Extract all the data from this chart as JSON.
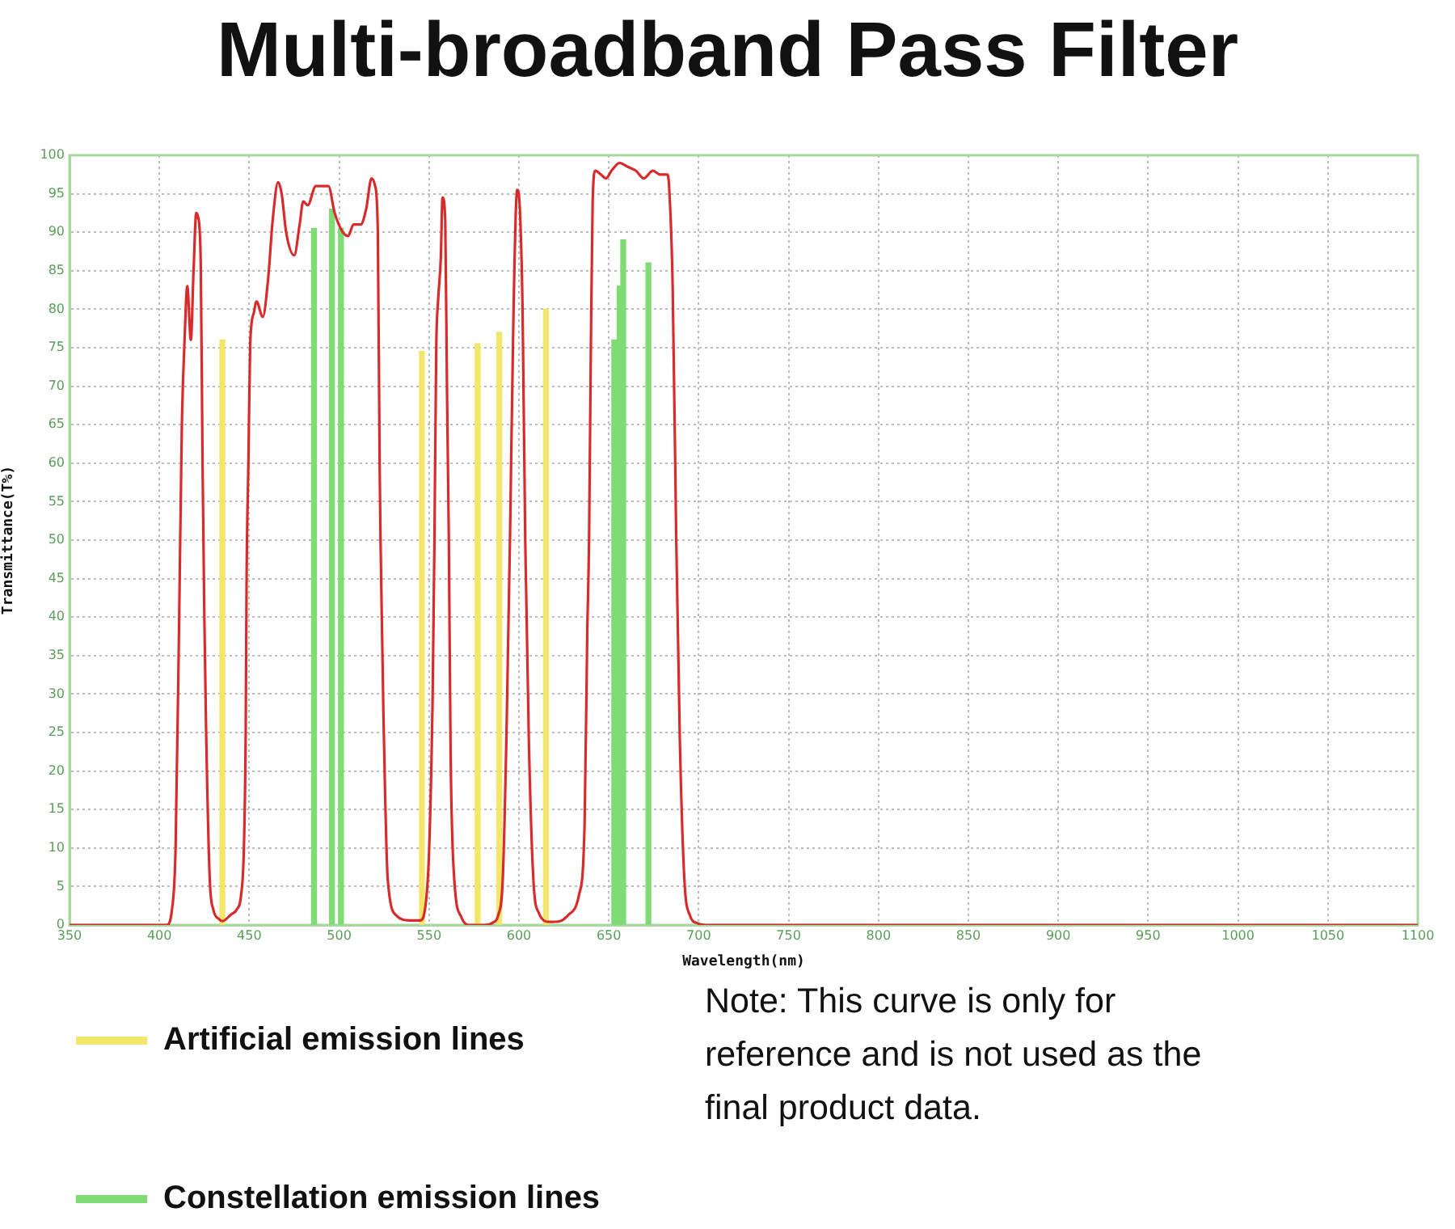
{
  "chart_data": {
    "type": "line",
    "title": "Multi-broadband Pass Filter",
    "xlabel": "Wavelength(nm)",
    "ylabel": "Transmittance(T%)",
    "xlim": [
      350,
      1100
    ],
    "xticks": [
      350,
      400,
      450,
      500,
      550,
      600,
      650,
      700,
      750,
      800,
      850,
      900,
      950,
      1000,
      1050,
      1100
    ],
    "ylim": [
      0,
      100
    ],
    "yticks": [
      0,
      5,
      10,
      15,
      20,
      25,
      30,
      35,
      40,
      45,
      50,
      55,
      60,
      65,
      70,
      75,
      80,
      85,
      90,
      95,
      100
    ],
    "grid": true,
    "marker": "none",
    "legend": "bottom left",
    "annotations": [
      "Note: This curve is only for reference and is not used as the final product data."
    ],
    "series": [
      {
        "color": "#d82c2c",
        "x": [
          350,
          404,
          407,
          409,
          411,
          412.5,
          414,
          415.5,
          417.5,
          419,
          420.5,
          421.5,
          423,
          424,
          425,
          426,
          428,
          430,
          433,
          435,
          440,
          443,
          445.5,
          447,
          448,
          448.5,
          449.5,
          450.5,
          452.5,
          454,
          457.5,
          460.5,
          463,
          466,
          468,
          470.5,
          475,
          478,
          480,
          482.5,
          487,
          490,
          494,
          497.5,
          502,
          505,
          508,
          512,
          515,
          518,
          520,
          521.5,
          522.5,
          523,
          524.5,
          527,
          532,
          539,
          545,
          548,
          550,
          552,
          553,
          554,
          555,
          556.5,
          557.5,
          559,
          560,
          561,
          562,
          564,
          568,
          572,
          581,
          585.5,
          588.5,
          591,
          593,
          595,
          597,
          599,
          600.5,
          602,
          603.5,
          605.5,
          608,
          611,
          617,
          623,
          627.5,
          633.5,
          636.5,
          638,
          639,
          640,
          641,
          642.5,
          645.5,
          648.5,
          651.5,
          656,
          660.5,
          665,
          669.5,
          674.5,
          678.5,
          682.5,
          683.5,
          685.5,
          687.5,
          689.5,
          692,
          695,
          699.5,
          704,
          1100
        ],
        "values": [
          0,
          0,
          2,
          10,
          40,
          65,
          76,
          83,
          76,
          85,
          92.5,
          92,
          86,
          60,
          40,
          25,
          6,
          2,
          0.8,
          0.5,
          1.4,
          2,
          4,
          10,
          25,
          45,
          60,
          75.5,
          79.5,
          81,
          79,
          84,
          91.5,
          96.5,
          95,
          90,
          87,
          91,
          94,
          93.5,
          96,
          96,
          96,
          92.5,
          90,
          89.5,
          91,
          91,
          93,
          97,
          96,
          90,
          60,
          50,
          29,
          6,
          1.2,
          0.6,
          0.6,
          2.5,
          9.5,
          30,
          50,
          75,
          81,
          86.5,
          94.5,
          91.5,
          69,
          50,
          22,
          6,
          1,
          0,
          0,
          0.3,
          1.3,
          6,
          24,
          50,
          80,
          95.5,
          93,
          80,
          50,
          24,
          6,
          1.6,
          0.4,
          0.5,
          1.3,
          4,
          13,
          38,
          50,
          75,
          94,
          98,
          97.5,
          97,
          98,
          99,
          98.5,
          98,
          97,
          98,
          97.5,
          97.5,
          96,
          83,
          50,
          24,
          6,
          1.3,
          0.2,
          0,
          0
        ]
      },
      {
        "type": "bar",
        "name": "Artificial emission lines",
        "color": "#f2e66b",
        "x": [
          435,
          546,
          577,
          589,
          615
        ],
        "values": [
          76,
          74.5,
          75.5,
          77,
          80
        ]
      },
      {
        "type": "bar",
        "name": "Constellation emission lines",
        "color": "#7fdc74",
        "x": [
          486,
          496,
          501,
          653,
          656,
          658,
          672
        ],
        "values": [
          90.5,
          93,
          90.5,
          76,
          83,
          89,
          86
        ]
      }
    ]
  }
}
